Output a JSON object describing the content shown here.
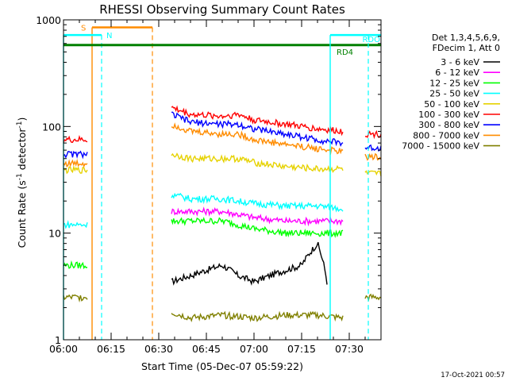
{
  "chart_data": {
    "type": "line",
    "title": "RHESSI Observing Summary Count Rates",
    "xlabel": "Start Time (05-Dec-07 05:59:22)",
    "ylabel_main": "Count Rate (s",
    "ylabel_sup1": "-1",
    "ylabel_mid": " detector",
    "ylabel_sup2": "-1",
    "ylabel_end": ")",
    "x_unit": "minutes after 06:00",
    "xlim": [
      0,
      100
    ],
    "ylim": [
      1,
      1000
    ],
    "y_scale": "log",
    "x_ticks": [
      {
        "value": 0,
        "label": "06:00"
      },
      {
        "value": 15,
        "label": "06:15"
      },
      {
        "value": 30,
        "label": "06:30"
      },
      {
        "value": 45,
        "label": "06:45"
      },
      {
        "value": 60,
        "label": "07:00"
      },
      {
        "value": 75,
        "label": "07:15"
      },
      {
        "value": 90,
        "label": "07:30"
      }
    ],
    "y_ticks": [
      {
        "value": 1,
        "label": "1"
      },
      {
        "value": 10,
        "label": "10"
      },
      {
        "value": 100,
        "label": "100"
      },
      {
        "value": 1000,
        "label": "1000"
      }
    ],
    "legend_header": [
      "Det 1,3,4,5,6,9,",
      "FDecim 1, Att 0"
    ],
    "legend_position": "right",
    "series": [
      {
        "name": "3 - 6 keV",
        "color": "#000000",
        "segments": [
          {
            "x": [
              34,
              40,
              45,
              50,
              55,
              60,
              65,
              70,
              75,
              80,
              83
            ],
            "y": [
              3.5,
              4,
              4.5,
              5,
              4,
              3.5,
              4,
              4.5,
              5,
              8,
              3.5
            ]
          }
        ]
      },
      {
        "name": "6 - 12 keV",
        "color": "#ff00ff",
        "segments": [
          {
            "x": [
              34,
              40,
              50,
              60,
              70,
              80,
              88
            ],
            "y": [
              16,
              16,
              16,
              14,
              13,
              13,
              13
            ]
          }
        ]
      },
      {
        "name": "12 - 25 keV",
        "color": "#00ff00",
        "segments": [
          {
            "x": [
              0,
              7.5
            ],
            "y": [
              5,
              5
            ]
          },
          {
            "x": [
              34,
              40,
              50,
              60,
              70,
              80,
              88
            ],
            "y": [
              13,
              13,
              13,
              11,
              10,
              10,
              10
            ]
          }
        ]
      },
      {
        "name": "25 - 50 keV",
        "color": "#00ffff",
        "segments": [
          {
            "x": [
              0,
              7.5
            ],
            "y": [
              12,
              12
            ]
          },
          {
            "x": [
              34,
              40,
              50,
              60,
              70,
              80,
              88
            ],
            "y": [
              23,
              21,
              21,
              19,
              18,
              18,
              17
            ]
          }
        ]
      },
      {
        "name": "50 - 100 keV",
        "color": "#e6d200",
        "segments": [
          {
            "x": [
              0,
              7.5
            ],
            "y": [
              39,
              39
            ]
          },
          {
            "x": [
              34,
              40,
              50,
              55,
              60,
              70,
              80,
              88
            ],
            "y": [
              55,
              50,
              50,
              50,
              46,
              42,
              40,
              40
            ]
          },
          {
            "x": [
              95,
              100
            ],
            "y": [
              36,
              36
            ]
          }
        ]
      },
      {
        "name": "100 - 300 keV",
        "color": "#ff0000",
        "segments": [
          {
            "x": [
              0,
              7.5
            ],
            "y": [
              75,
              75
            ]
          },
          {
            "x": [
              34,
              40,
              50,
              55,
              60,
              70,
              80,
              88
            ],
            "y": [
              150,
              130,
              125,
              130,
              115,
              105,
              95,
              90
            ]
          },
          {
            "x": [
              95,
              100
            ],
            "y": [
              85,
              85
            ]
          }
        ]
      },
      {
        "name": "300 - 800 keV",
        "color": "#0000ff",
        "segments": [
          {
            "x": [
              0,
              7.5
            ],
            "y": [
              55,
              55
            ]
          },
          {
            "x": [
              34,
              40,
              50,
              55,
              60,
              70,
              80,
              88
            ],
            "y": [
              130,
              110,
              105,
              105,
              95,
              85,
              75,
              70
            ]
          },
          {
            "x": [
              95,
              100
            ],
            "y": [
              63,
              63
            ]
          }
        ]
      },
      {
        "name": "800 - 7000 keV",
        "color": "#ff8c00",
        "segments": [
          {
            "x": [
              0,
              7.5
            ],
            "y": [
              45,
              45
            ]
          },
          {
            "x": [
              34,
              40,
              50,
              55,
              60,
              70,
              80,
              88
            ],
            "y": [
              105,
              90,
              85,
              85,
              75,
              68,
              62,
              58
            ]
          },
          {
            "x": [
              95,
              100
            ],
            "y": [
              52,
              52
            ]
          }
        ]
      },
      {
        "name": "7000 - 15000 keV",
        "color": "#808000",
        "segments": [
          {
            "x": [
              0,
              7.5
            ],
            "y": [
              2.5,
              2.5
            ]
          },
          {
            "x": [
              34,
              40,
              50,
              60,
              70,
              80,
              88
            ],
            "y": [
              1.8,
              1.6,
              1.7,
              1.6,
              1.7,
              1.7,
              1.6
            ]
          },
          {
            "x": [
              95,
              100
            ],
            "y": [
              2.5,
              2.5
            ]
          }
        ]
      }
    ],
    "markers": [
      {
        "label": "S",
        "color": "#ff8c00",
        "line_y": 850,
        "x_start": 9,
        "x_end": 28,
        "solid_x": 9,
        "dashed_x": 28
      },
      {
        "label": "N",
        "color": "#00ffff",
        "line_y": 720,
        "x_start": 0,
        "x_end": 12,
        "solid_x": 0,
        "dashed_x": 12
      },
      {
        "label": "RD4",
        "color": "#008000",
        "line_y": 580,
        "x_start": 0,
        "x_end": 100
      },
      {
        "label": "RDO",
        "color": "#00ffff",
        "line_y": 720,
        "x_start": 84,
        "x_end": 100,
        "solid_x": 84,
        "dashed_x": 96
      }
    ],
    "footer": "17-Oct-2021 00:57"
  }
}
